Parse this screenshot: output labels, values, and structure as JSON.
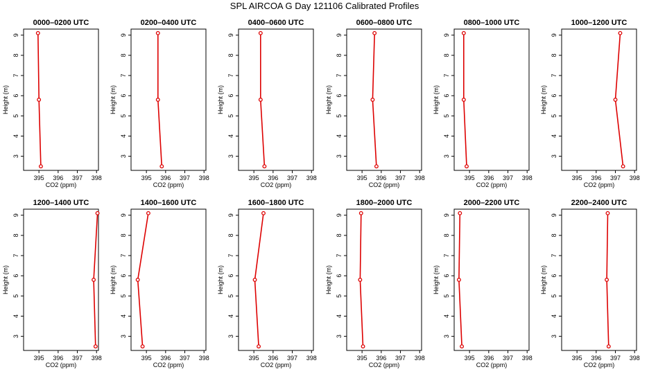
{
  "figure_title": "SPL AIRCOA G  Day 121106  Calibrated Profiles",
  "colors": {
    "series": "#dd0000",
    "axes": "#000000"
  },
  "chart_data": [
    {
      "type": "line",
      "title": "0000–0200 UTC",
      "xlabel": "CO2 (ppm)",
      "ylabel": "Height (m)",
      "xlim": [
        394.2,
        398.1
      ],
      "ylim": [
        2.3,
        9.3
      ],
      "xticks": [
        395,
        396,
        397,
        398
      ],
      "yticks": [
        3,
        4,
        5,
        6,
        7,
        8,
        9
      ],
      "grid": false,
      "series": [
        {
          "x": [
            394.95,
            395.0,
            395.1
          ],
          "y": [
            9.1,
            5.8,
            2.5
          ]
        }
      ]
    },
    {
      "type": "line",
      "title": "0200–0400 UTC",
      "xlabel": "CO2 (ppm)",
      "ylabel": "Height (m)",
      "xlim": [
        394.2,
        398.1
      ],
      "ylim": [
        2.3,
        9.3
      ],
      "xticks": [
        395,
        396,
        397,
        398
      ],
      "yticks": [
        3,
        4,
        5,
        6,
        7,
        8,
        9
      ],
      "grid": false,
      "series": [
        {
          "x": [
            395.6,
            395.6,
            395.8
          ],
          "y": [
            9.1,
            5.8,
            2.5
          ]
        }
      ]
    },
    {
      "type": "line",
      "title": "0400–0600 UTC",
      "xlabel": "CO2 (ppm)",
      "ylabel": "Height (m)",
      "xlim": [
        394.2,
        398.1
      ],
      "ylim": [
        2.3,
        9.3
      ],
      "xticks": [
        395,
        396,
        397,
        398
      ],
      "yticks": [
        3,
        4,
        5,
        6,
        7,
        8,
        9
      ],
      "grid": false,
      "series": [
        {
          "x": [
            395.35,
            395.35,
            395.55
          ],
          "y": [
            9.1,
            5.8,
            2.5
          ]
        }
      ]
    },
    {
      "type": "line",
      "title": "0600–0800 UTC",
      "xlabel": "CO2 (ppm)",
      "ylabel": "Height (m)",
      "xlim": [
        394.2,
        398.1
      ],
      "ylim": [
        2.3,
        9.3
      ],
      "xticks": [
        395,
        396,
        397,
        398
      ],
      "yticks": [
        3,
        4,
        5,
        6,
        7,
        8,
        9
      ],
      "grid": false,
      "series": [
        {
          "x": [
            395.65,
            395.55,
            395.75
          ],
          "y": [
            9.1,
            5.8,
            2.5
          ]
        }
      ]
    },
    {
      "type": "line",
      "title": "0800–1000 UTC",
      "xlabel": "CO2 (ppm)",
      "ylabel": "Height (m)",
      "xlim": [
        394.2,
        398.1
      ],
      "ylim": [
        2.3,
        9.3
      ],
      "xticks": [
        395,
        396,
        397,
        398
      ],
      "yticks": [
        3,
        4,
        5,
        6,
        7,
        8,
        9
      ],
      "grid": false,
      "series": [
        {
          "x": [
            394.7,
            394.7,
            394.85
          ],
          "y": [
            9.1,
            5.8,
            2.5
          ]
        }
      ]
    },
    {
      "type": "line",
      "title": "1000–1200 UTC",
      "xlabel": "CO2 (ppm)",
      "ylabel": "Height (m)",
      "xlim": [
        394.2,
        398.1
      ],
      "ylim": [
        2.3,
        9.3
      ],
      "xticks": [
        395,
        396,
        397,
        398
      ],
      "yticks": [
        3,
        4,
        5,
        6,
        7,
        8,
        9
      ],
      "grid": false,
      "series": [
        {
          "x": [
            397.25,
            397.0,
            397.4
          ],
          "y": [
            9.1,
            5.8,
            2.5
          ]
        }
      ]
    },
    {
      "type": "line",
      "title": "1200–1400 UTC",
      "xlabel": "CO2 (ppm)",
      "ylabel": "Height (m)",
      "xlim": [
        394.2,
        398.1
      ],
      "ylim": [
        2.3,
        9.3
      ],
      "xticks": [
        395,
        396,
        397,
        398
      ],
      "yticks": [
        3,
        4,
        5,
        6,
        7,
        8,
        9
      ],
      "grid": false,
      "series": [
        {
          "x": [
            398.05,
            397.85,
            397.95
          ],
          "y": [
            9.1,
            5.8,
            2.5
          ]
        }
      ]
    },
    {
      "type": "line",
      "title": "1400–1600 UTC",
      "xlabel": "CO2 (ppm)",
      "ylabel": "Height (m)",
      "xlim": [
        394.2,
        398.1
      ],
      "ylim": [
        2.3,
        9.3
      ],
      "xticks": [
        395,
        396,
        397,
        398
      ],
      "yticks": [
        3,
        4,
        5,
        6,
        7,
        8,
        9
      ],
      "grid": false,
      "series": [
        {
          "x": [
            395.1,
            394.55,
            394.8
          ],
          "y": [
            9.1,
            5.8,
            2.5
          ]
        }
      ]
    },
    {
      "type": "line",
      "title": "1600–1800 UTC",
      "xlabel": "CO2 (ppm)",
      "ylabel": "Height (m)",
      "xlim": [
        394.2,
        398.1
      ],
      "ylim": [
        2.3,
        9.3
      ],
      "xticks": [
        395,
        396,
        397,
        398
      ],
      "yticks": [
        3,
        4,
        5,
        6,
        7,
        8,
        9
      ],
      "grid": false,
      "series": [
        {
          "x": [
            395.5,
            395.05,
            395.25
          ],
          "y": [
            9.1,
            5.8,
            2.5
          ]
        }
      ]
    },
    {
      "type": "line",
      "title": "1800–2000 UTC",
      "xlabel": "CO2 (ppm)",
      "ylabel": "Height (m)",
      "xlim": [
        394.2,
        398.1
      ],
      "ylim": [
        2.3,
        9.3
      ],
      "xticks": [
        395,
        396,
        397,
        398
      ],
      "yticks": [
        3,
        4,
        5,
        6,
        7,
        8,
        9
      ],
      "grid": false,
      "series": [
        {
          "x": [
            394.95,
            394.9,
            395.05
          ],
          "y": [
            9.1,
            5.8,
            2.5
          ]
        }
      ]
    },
    {
      "type": "line",
      "title": "2000–2200 UTC",
      "xlabel": "CO2 (ppm)",
      "ylabel": "Height (m)",
      "xlim": [
        394.2,
        398.1
      ],
      "ylim": [
        2.3,
        9.3
      ],
      "xticks": [
        395,
        396,
        397,
        398
      ],
      "yticks": [
        3,
        4,
        5,
        6,
        7,
        8,
        9
      ],
      "grid": false,
      "series": [
        {
          "x": [
            394.5,
            394.45,
            394.6
          ],
          "y": [
            9.1,
            5.8,
            2.5
          ]
        }
      ]
    },
    {
      "type": "line",
      "title": "2200–2400 UTC",
      "xlabel": "CO2 (ppm)",
      "ylabel": "Height (m)",
      "xlim": [
        394.2,
        398.1
      ],
      "ylim": [
        2.3,
        9.3
      ],
      "xticks": [
        395,
        396,
        397,
        398
      ],
      "yticks": [
        3,
        4,
        5,
        6,
        7,
        8,
        9
      ],
      "grid": false,
      "series": [
        {
          "x": [
            396.6,
            396.55,
            396.65
          ],
          "y": [
            9.1,
            5.8,
            2.5
          ]
        }
      ]
    }
  ]
}
